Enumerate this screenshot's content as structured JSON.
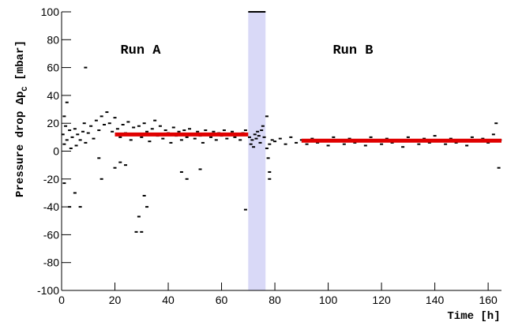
{
  "chart_data": {
    "type": "scatter",
    "xlabel": "Time [h]",
    "ylabel": {
      "main": "Pressure drop Δp",
      "sub": "C",
      "unit": "[mbar]"
    },
    "annotations": [
      "Run A",
      "Run B"
    ],
    "xlim": [
      0,
      165
    ],
    "ylim": [
      -100,
      100
    ],
    "xticks": [
      0,
      20,
      40,
      60,
      80,
      100,
      120,
      140,
      160
    ],
    "yticks": [
      -100,
      -80,
      -60,
      -40,
      -20,
      0,
      20,
      40,
      60,
      80,
      100
    ],
    "bands": [
      {
        "x": [
          70,
          76.5
        ],
        "color": "#d9d9f7"
      }
    ],
    "fits": [
      {
        "x": [
          20,
          70
        ],
        "values": [
          12,
          12
        ],
        "color": "#e00000"
      },
      {
        "x": [
          90,
          165
        ],
        "values": [
          7.5,
          7.5
        ],
        "color": "#e00000"
      }
    ],
    "series": [
      {
        "color": "#000000",
        "x": [
          0.5,
          1,
          1.5,
          2,
          3,
          3.5,
          4,
          5,
          5.5,
          6,
          7,
          8,
          8.5,
          9,
          10,
          11,
          12,
          13,
          14,
          15,
          16,
          17,
          18,
          19,
          20,
          21,
          22,
          23,
          24,
          25,
          26,
          27,
          28,
          29,
          30,
          31,
          32,
          33,
          34,
          35,
          36,
          37,
          38,
          39,
          40,
          41,
          42,
          43,
          44,
          45,
          46,
          47,
          48,
          49,
          50,
          51,
          52,
          53,
          54,
          55,
          56,
          57,
          58,
          59,
          60,
          61,
          62,
          63,
          64,
          65,
          66,
          67,
          68,
          69,
          70.5,
          71,
          71.5,
          72,
          72.5,
          73,
          73.5,
          74,
          74.5,
          75,
          75.5,
          76,
          77,
          77.5,
          78,
          78,
          77,
          78,
          79,
          80,
          82,
          84,
          86,
          88,
          90,
          92,
          94,
          96,
          98,
          100,
          102,
          104,
          106,
          108,
          110,
          112,
          114,
          116,
          118,
          120,
          122,
          124,
          126,
          128,
          130,
          132,
          134,
          136,
          138,
          140,
          142,
          144,
          146,
          148,
          150,
          152,
          154,
          156,
          158,
          160,
          162,
          163,
          164,
          164.5,
          9,
          3,
          7,
          28,
          30,
          29,
          32,
          31,
          24,
          45,
          47,
          52,
          69,
          1,
          5,
          15,
          20,
          22,
          14,
          2,
          1
        ],
        "y": [
          12,
          5,
          18,
          8,
          15,
          2,
          10,
          16,
          4,
          12,
          8,
          14,
          20,
          6,
          13,
          18,
          9,
          22,
          15,
          25,
          19,
          28,
          20,
          14,
          24,
          16,
          10,
          19,
          13,
          21,
          8,
          17,
          12,
          18,
          10,
          20,
          14,
          7,
          16,
          22,
          11,
          18,
          9,
          15,
          13,
          6,
          17,
          11,
          14,
          8,
          15,
          10,
          16,
          12,
          9,
          14,
          11,
          6,
          15,
          12,
          10,
          14,
          8,
          13,
          11,
          15,
          9,
          12,
          14,
          10,
          12,
          8,
          13,
          15,
          10,
          5,
          8,
          3,
          12,
          9,
          14,
          11,
          6,
          15,
          18,
          10,
          2,
          -5,
          -15,
          -20,
          25,
          5,
          8,
          7,
          9,
          5,
          10,
          6,
          8,
          5,
          9,
          6,
          8,
          4,
          10,
          7,
          5,
          9,
          6,
          8,
          4,
          10,
          7,
          5,
          9,
          6,
          8,
          3,
          10,
          7,
          5,
          9,
          6,
          11,
          7,
          5,
          9,
          6,
          8,
          4,
          10,
          7,
          9,
          6,
          12,
          20,
          -12,
          8,
          60,
          -40,
          -40,
          -58,
          -58,
          -47,
          -40,
          -32,
          -10,
          -15,
          -20,
          -13,
          -42,
          -23,
          -30,
          -20,
          -12,
          -8,
          -5,
          35,
          25
        ]
      }
    ]
  }
}
